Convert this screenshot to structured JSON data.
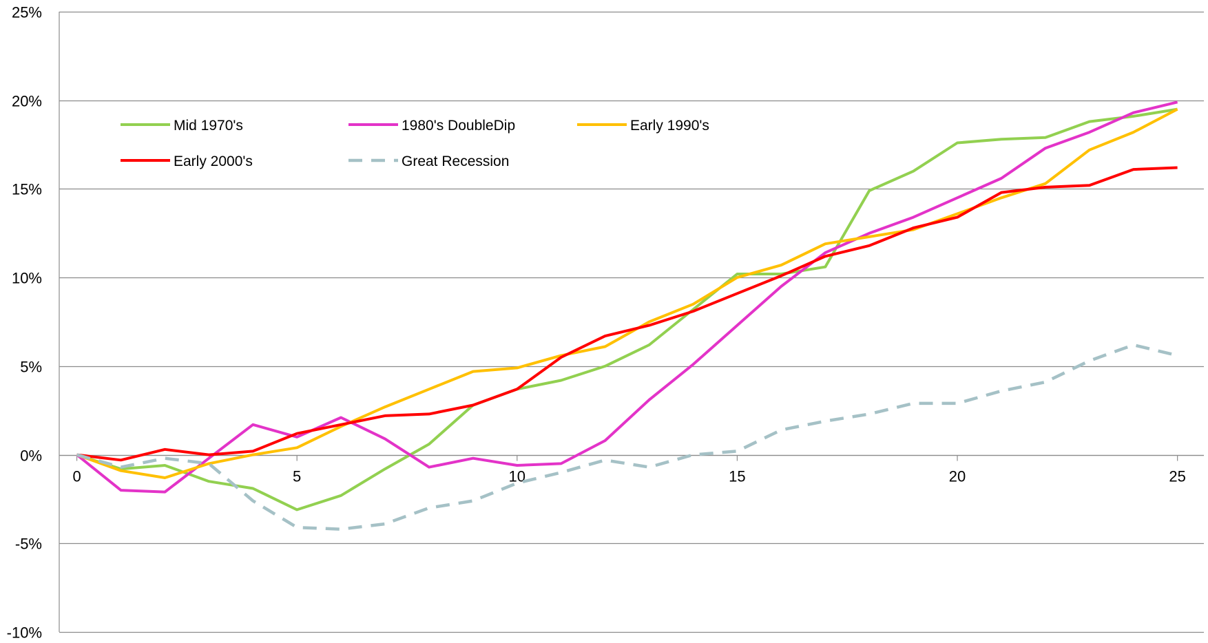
{
  "chart_data": {
    "type": "line",
    "title": "",
    "xlabel": "",
    "ylabel": "",
    "x": [
      0,
      1,
      2,
      3,
      4,
      5,
      6,
      7,
      8,
      9,
      10,
      11,
      12,
      13,
      14,
      15,
      16,
      17,
      18,
      19,
      20,
      21,
      22,
      23,
      24,
      25
    ],
    "xlim": [
      -0.4,
      25.6
    ],
    "ylim": [
      -10,
      25
    ],
    "x_ticks": [
      0,
      5,
      10,
      15,
      20,
      25
    ],
    "x_tick_labels": [
      "0",
      "5",
      "10",
      "15",
      "20",
      "25"
    ],
    "y_ticks": [
      -10,
      -5,
      0,
      5,
      10,
      15,
      20,
      25
    ],
    "y_tick_labels": [
      "-10%",
      "-5%",
      "0%",
      "5%",
      "10%",
      "15%",
      "20%",
      "25%"
    ],
    "grid": "horizontal",
    "legend_position": "top-left",
    "series": [
      {
        "name": "Mid 1970's",
        "color": "#92D050",
        "dash": "solid",
        "values": [
          0,
          -0.8,
          -0.6,
          -1.5,
          -1.9,
          -3.1,
          -2.3,
          -0.8,
          0.6,
          2.8,
          3.7,
          4.2,
          5.0,
          6.2,
          8.2,
          10.2,
          10.2,
          10.6,
          14.9,
          16.0,
          17.6,
          17.8,
          17.9,
          18.8,
          19.1,
          19.5
        ]
      },
      {
        "name": "1980's DoubleDip",
        "color": "#E333C8",
        "dash": "solid",
        "values": [
          0,
          -2.0,
          -2.1,
          -0.2,
          1.7,
          1.0,
          2.1,
          0.9,
          -0.7,
          -0.2,
          -0.6,
          -0.5,
          0.8,
          3.1,
          5.1,
          7.3,
          9.5,
          11.4,
          12.5,
          13.4,
          14.5,
          15.6,
          17.3,
          18.2,
          19.3,
          19.9
        ]
      },
      {
        "name": "Early 1990's",
        "color": "#FFC000",
        "dash": "solid",
        "values": [
          0,
          -0.9,
          -1.3,
          -0.5,
          0,
          0.4,
          1.6,
          2.7,
          3.7,
          4.7,
          4.9,
          5.6,
          6.1,
          7.5,
          8.5,
          10.0,
          10.7,
          11.9,
          12.3,
          12.7,
          13.6,
          14.5,
          15.3,
          17.2,
          18.2,
          19.5
        ]
      },
      {
        "name": "Early 2000's",
        "color": "#FF0000",
        "dash": "solid",
        "values": [
          0,
          -0.3,
          0.3,
          0,
          0.2,
          1.2,
          1.7,
          2.2,
          2.3,
          2.8,
          3.7,
          5.5,
          6.7,
          7.3,
          8.1,
          9.1,
          10.1,
          11.2,
          11.8,
          12.8,
          13.4,
          14.8,
          15.1,
          15.2,
          16.1,
          16.2
        ]
      },
      {
        "name": "Great Recession",
        "color": "#A5C1C6",
        "dash": "dashed",
        "values": [
          0,
          -0.7,
          -0.2,
          -0.5,
          -2.6,
          -4.1,
          -4.2,
          -3.9,
          -3.0,
          -2.6,
          -1.6,
          -1.0,
          -0.3,
          -0.7,
          0,
          0.2,
          1.4,
          1.9,
          2.3,
          2.9,
          2.9,
          3.6,
          4.1,
          5.3,
          6.2,
          5.6
        ]
      }
    ]
  }
}
